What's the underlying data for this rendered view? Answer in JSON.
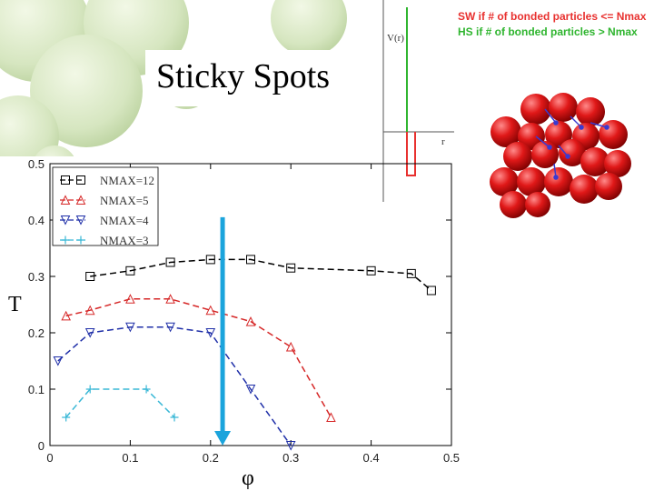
{
  "slide": {
    "title": "Sticky Spots"
  },
  "potential_inset": {
    "ylabel": "V(r)",
    "xlabel": "r",
    "sw_rule": "SW if # of bonded particles <= Nmax",
    "hs_rule": "HS if # of bonded particles > Nmax",
    "colors": {
      "sw": "#e8312f",
      "hs": "#2fb52f"
    }
  },
  "chart_data": {
    "type": "line",
    "xlabel": "φ",
    "ylabel": "T",
    "xlim": [
      0,
      0.5
    ],
    "ylim": [
      0,
      0.5
    ],
    "xticks": [
      "0",
      "0.1",
      "0.2",
      "0.3",
      "0.4",
      "0.5"
    ],
    "yticks": [
      "0",
      "0.1",
      "0.2",
      "0.3",
      "0.4",
      "0.5"
    ],
    "legend_position": "top-left",
    "series": [
      {
        "name": "NMAX=12",
        "color": "#000000",
        "marker": "square",
        "x": [
          0.05,
          0.1,
          0.15,
          0.2,
          0.25,
          0.3,
          0.4,
          0.45,
          0.475
        ],
        "y": [
          0.3,
          0.31,
          0.325,
          0.33,
          0.33,
          0.315,
          0.31,
          0.305,
          0.275
        ]
      },
      {
        "name": "NMAX=5",
        "color": "#d62828",
        "marker": "triangle-up",
        "x": [
          0.02,
          0.05,
          0.1,
          0.15,
          0.2,
          0.25,
          0.3,
          0.35
        ],
        "y": [
          0.23,
          0.24,
          0.26,
          0.26,
          0.24,
          0.22,
          0.175,
          0.05
        ]
      },
      {
        "name": "NMAX=4",
        "color": "#1f2fa8",
        "marker": "triangle-down",
        "x": [
          0.01,
          0.05,
          0.1,
          0.15,
          0.2,
          0.25,
          0.3
        ],
        "y": [
          0.15,
          0.2,
          0.21,
          0.21,
          0.2,
          0.1,
          0.0
        ]
      },
      {
        "name": "NMAX=3",
        "color": "#3ab8d6",
        "marker": "plus",
        "x": [
          0.02,
          0.05,
          0.12,
          0.155
        ],
        "y": [
          0.05,
          0.1,
          0.1,
          0.05
        ]
      }
    ],
    "arrow": {
      "x": 0.215,
      "y_from": 0.405,
      "y_to": 0.0,
      "color": "#1ba4dc"
    }
  }
}
